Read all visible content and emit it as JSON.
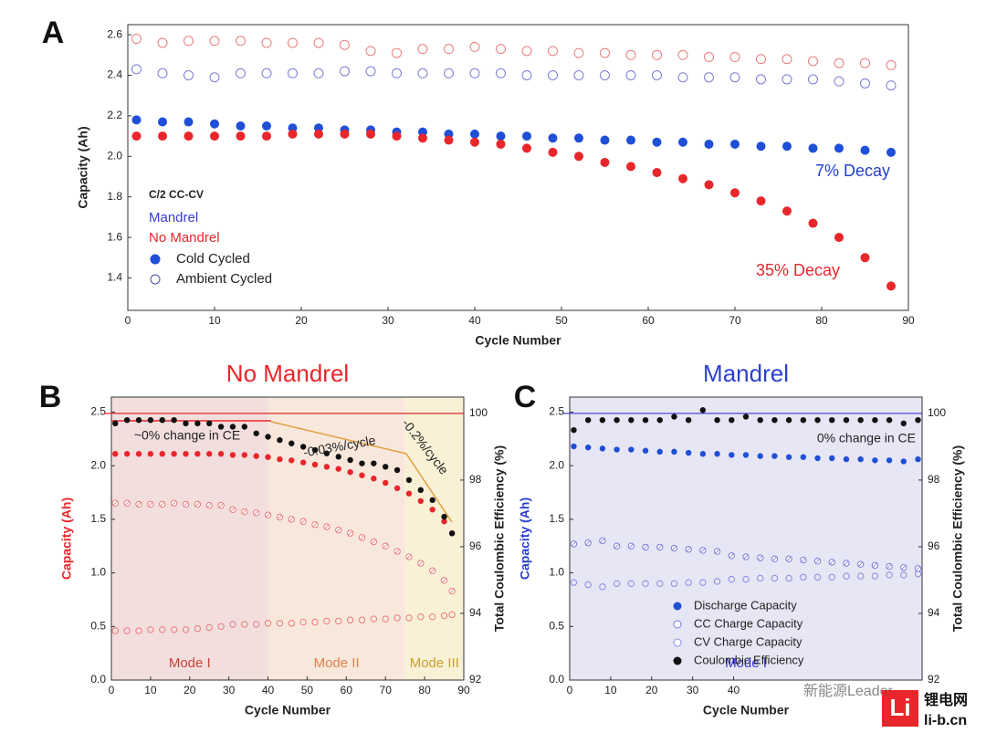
{
  "chart_data": [
    {
      "type": "scatter",
      "panel": "A",
      "xlabel": "Cycle Number",
      "ylabel": "Capacity (Ah)",
      "xlim": [
        0,
        90
      ],
      "xticks": [
        0,
        10,
        20,
        30,
        40,
        50,
        60,
        70,
        80,
        90
      ],
      "ylim": [
        1.24,
        2.65
      ],
      "yticks": [
        1.4,
        1.6,
        1.8,
        {
          "value": 2,
          "label": "2.0"
        },
        2.2,
        2.4,
        2.6
      ],
      "legend": {
        "title": "C/2 CC-CV",
        "groups": [
          {
            "label": "Mandrel",
            "color": "#3b3bd6"
          },
          {
            "label": "No Mandrel",
            "color": "#e8262b"
          }
        ],
        "markers": [
          {
            "label": "Cold Cycled",
            "marker": "filled",
            "color": "#1f4fd6"
          },
          {
            "label": "Ambient Cycled",
            "marker": "open",
            "color": "#4a4aa0"
          }
        ]
      },
      "annotations": [
        {
          "text": "7% Decay",
          "color": "#2140c8"
        },
        {
          "text": "35% Decay",
          "color": "#e8262b"
        }
      ],
      "x": [
        1,
        4,
        7,
        10,
        13,
        16,
        19,
        22,
        25,
        28,
        31,
        34,
        37,
        40,
        43,
        46,
        49,
        52,
        55,
        58,
        61,
        64,
        67,
        70,
        73,
        76,
        79,
        82,
        85,
        88
      ],
      "series": [
        {
          "color": "#e87a7a",
          "marker": "open",
          "values": [
            2.58,
            2.56,
            2.57,
            2.57,
            2.57,
            2.56,
            2.56,
            2.56,
            2.55,
            2.52,
            2.51,
            2.53,
            2.53,
            2.54,
            2.53,
            2.52,
            2.52,
            2.51,
            2.51,
            2.5,
            2.5,
            2.5,
            2.49,
            2.49,
            2.48,
            2.48,
            2.47,
            2.46,
            2.46,
            2.45
          ]
        },
        {
          "color": "#7b7bd6",
          "marker": "open",
          "values": [
            2.43,
            2.41,
            2.4,
            2.39,
            2.41,
            2.41,
            2.41,
            2.41,
            2.42,
            2.42,
            2.41,
            2.41,
            2.41,
            2.41,
            2.41,
            2.4,
            2.4,
            2.4,
            2.4,
            2.4,
            2.4,
            2.39,
            2.39,
            2.39,
            2.38,
            2.38,
            2.38,
            2.37,
            2.36,
            2.35
          ]
        },
        {
          "color": "#1f4fd6",
          "marker": "filled",
          "values": [
            2.18,
            2.17,
            2.17,
            2.16,
            2.15,
            2.15,
            2.14,
            2.14,
            2.13,
            2.13,
            2.12,
            2.12,
            2.11,
            2.11,
            2.1,
            2.1,
            2.09,
            2.09,
            2.08,
            2.08,
            2.07,
            2.07,
            2.06,
            2.06,
            2.05,
            2.05,
            2.04,
            2.04,
            2.03,
            2.02
          ]
        },
        {
          "color": "#e8262b",
          "marker": "filled",
          "values": [
            2.1,
            2.1,
            2.1,
            2.1,
            2.1,
            2.1,
            2.11,
            2.11,
            2.11,
            2.11,
            2.1,
            2.09,
            2.08,
            2.07,
            2.06,
            2.04,
            2.02,
            2.0,
            1.97,
            1.95,
            1.92,
            1.89,
            1.86,
            1.82,
            1.78,
            1.73,
            1.67,
            1.6,
            1.5,
            1.36
          ]
        }
      ]
    },
    {
      "type": "scatter",
      "panel": "B",
      "title": "No Mandrel",
      "title_color": "#e8262b",
      "xlabel": "Cycle Number",
      "ylabel": "Capacity (Ah)",
      "ylabel_color": "#e8262b",
      "y2label": "Total Coulombic Efficiency (%)",
      "xlim": [
        0,
        90
      ],
      "xticks": [
        0,
        10,
        20,
        30,
        40,
        50,
        60,
        70,
        80,
        90
      ],
      "ylim": [
        0,
        2.64
      ],
      "yticks": [
        {
          "value": 0,
          "label": "0.0"
        },
        0.5,
        {
          "value": 1,
          "label": "1.0"
        },
        1.5,
        {
          "value": 2,
          "label": "2.0"
        },
        2.5
      ],
      "y2lim": [
        92,
        100.49
      ],
      "y2ticks": [
        92,
        94,
        96,
        98,
        100
      ],
      "hline": {
        "value": 100,
        "color": "#e8262b"
      },
      "regions": [
        {
          "label": "Mode I",
          "from": 0,
          "to": 40,
          "color": "#f3dede",
          "label_color": "#c8423a"
        },
        {
          "label": "Mode II",
          "from": 40,
          "to": 75,
          "color": "#f8e8dc",
          "label_color": "#e0804a"
        },
        {
          "label": "Mode III",
          "from": 75,
          "to": 90,
          "color": "#f9f1d6",
          "label_color": "#c9a030"
        }
      ],
      "annotations": [
        {
          "text": "~0% change in CE",
          "color": "#222"
        },
        {
          "text": "-0.03%/cycle",
          "color": "#222"
        },
        {
          "text": "-0.2%/cycle",
          "color": "#222"
        }
      ],
      "x": [
        1,
        4,
        7,
        10,
        13,
        16,
        19,
        22,
        25,
        28,
        31,
        34,
        37,
        40,
        43,
        46,
        49,
        52,
        55,
        58,
        61,
        64,
        67,
        70,
        73,
        76,
        79,
        82,
        85,
        87
      ],
      "series": [
        {
          "color": "#e87a7a",
          "marker": "open",
          "values": [
            0.46,
            0.46,
            0.46,
            0.47,
            0.47,
            0.47,
            0.47,
            0.48,
            0.49,
            0.5,
            0.52,
            0.52,
            0.52,
            0.53,
            0.53,
            0.53,
            0.54,
            0.54,
            0.55,
            0.55,
            0.56,
            0.56,
            0.57,
            0.57,
            0.58,
            0.58,
            0.59,
            0.59,
            0.6,
            0.61
          ]
        },
        {
          "color": "#e87a7a",
          "marker": "hatched",
          "values": [
            1.65,
            1.65,
            1.64,
            1.64,
            1.64,
            1.65,
            1.64,
            1.64,
            1.63,
            1.63,
            1.59,
            1.57,
            1.56,
            1.54,
            1.52,
            1.5,
            1.48,
            1.45,
            1.43,
            1.4,
            1.37,
            1.33,
            1.29,
            1.25,
            1.2,
            1.15,
            1.09,
            1.02,
            0.93,
            0.83
          ]
        },
        {
          "color": "#e8262b",
          "marker": "filled",
          "values": [
            2.11,
            2.11,
            2.11,
            2.11,
            2.11,
            2.11,
            2.11,
            2.11,
            2.11,
            2.11,
            2.1,
            2.1,
            2.09,
            2.08,
            2.06,
            2.05,
            2.03,
            2.01,
            1.99,
            1.97,
            1.94,
            1.91,
            1.88,
            1.84,
            1.79,
            1.74,
            1.67,
            1.59,
            1.48,
            1.37
          ]
        },
        {
          "color": "#111111",
          "marker": "filled",
          "axis": "y2",
          "values": [
            99.7,
            99.8,
            99.8,
            99.8,
            99.8,
            99.8,
            99.7,
            99.7,
            99.7,
            99.6,
            99.6,
            99.6,
            99.4,
            99.3,
            99.2,
            99.1,
            99.0,
            98.9,
            98.8,
            98.7,
            98.6,
            98.5,
            98.5,
            98.4,
            98.3,
            98.0,
            97.7,
            97.4,
            96.9,
            96.4
          ]
        }
      ]
    },
    {
      "type": "scatter",
      "panel": "C",
      "title": "Mandrel",
      "title_color": "#2a3fd0",
      "xlabel": "Cycle Number",
      "ylabel": "Capacity (Ah)",
      "ylabel_color": "#2a3fd0",
      "y2label": "Total Coulombic Efficiency (%)",
      "xlim": [
        0,
        86
      ],
      "xticks": [
        0,
        10,
        20,
        30,
        40
      ],
      "ylim": [
        0,
        2.64
      ],
      "yticks": [
        {
          "value": 0,
          "label": "0.0"
        },
        0.5,
        {
          "value": 1,
          "label": "1.0"
        },
        1.5,
        {
          "value": 2,
          "label": "2.0"
        },
        2.5
      ],
      "y2lim": [
        92,
        100.49
      ],
      "y2ticks": [
        92,
        94,
        96,
        98,
        100
      ],
      "hline": {
        "value": 100,
        "color": "#4a4ad0"
      },
      "regions": [
        {
          "label": "Mode I",
          "from": 0,
          "to": 86,
          "color": "#e6e6f5",
          "label_color": "#3a3ad0"
        }
      ],
      "annotations": [
        {
          "text": "0% change in CE",
          "color": "#222"
        }
      ],
      "x": [
        1,
        4.5,
        8,
        11.5,
        15,
        18.5,
        22,
        25.5,
        29,
        32.5,
        36,
        39.5,
        43,
        46.5,
        50,
        53.5,
        57,
        60.5,
        64,
        67.5,
        71,
        74.5,
        78,
        81.5,
        85
      ],
      "series": [
        {
          "name": "Coulombic Efficiency",
          "color": "#111111",
          "marker": "filled",
          "axis": "y2",
          "values": [
            99.5,
            99.8,
            99.8,
            99.8,
            99.8,
            99.8,
            99.8,
            99.9,
            99.8,
            100.1,
            99.8,
            99.8,
            99.9,
            99.8,
            99.8,
            99.8,
            99.8,
            99.8,
            99.8,
            99.8,
            99.8,
            99.8,
            99.8,
            99.7,
            99.8
          ]
        },
        {
          "name": "CV Charge Capacity",
          "color": "#8a8ae0",
          "marker": "open",
          "values": [
            0.91,
            0.89,
            0.87,
            0.9,
            0.9,
            0.9,
            0.9,
            0.9,
            0.91,
            0.91,
            0.92,
            0.94,
            0.94,
            0.95,
            0.95,
            0.95,
            0.96,
            0.96,
            0.96,
            0.97,
            0.97,
            0.97,
            0.98,
            0.98,
            0.99
          ]
        },
        {
          "name": "CC Charge Capacity",
          "color": "#7a7ad6",
          "marker": "hatched",
          "values": [
            1.27,
            1.28,
            1.3,
            1.25,
            1.25,
            1.24,
            1.24,
            1.23,
            1.22,
            1.21,
            1.2,
            1.16,
            1.15,
            1.14,
            1.13,
            1.13,
            1.12,
            1.11,
            1.1,
            1.09,
            1.08,
            1.07,
            1.06,
            1.05,
            1.04
          ]
        },
        {
          "name": "Discharge Capacity",
          "color": "#1f4fd6",
          "marker": "filled",
          "values": [
            2.18,
            2.17,
            2.16,
            2.15,
            2.15,
            2.14,
            2.13,
            2.13,
            2.12,
            2.11,
            2.11,
            2.1,
            2.1,
            2.09,
            2.09,
            2.08,
            2.08,
            2.07,
            2.07,
            2.06,
            2.06,
            2.05,
            2.05,
            2.04,
            2.06
          ]
        }
      ]
    }
  ],
  "watermark": {
    "account": "新能源Leader",
    "site_name": "锂电网",
    "site_url": "li-b.cn"
  }
}
